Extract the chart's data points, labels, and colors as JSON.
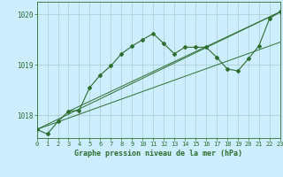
{
  "title": "Graphe pression niveau de la mer (hPa)",
  "background_color": "#cceeff",
  "grid_color": "#aacccc",
  "line_color": "#2d6e2d",
  "xlim": [
    0,
    23
  ],
  "ylim": [
    1017.55,
    1020.25
  ],
  "yticks": [
    1018,
    1019,
    1020
  ],
  "xticks": [
    0,
    1,
    2,
    3,
    4,
    5,
    6,
    7,
    8,
    9,
    10,
    11,
    12,
    13,
    14,
    15,
    16,
    17,
    18,
    19,
    20,
    21,
    22,
    23
  ],
  "main_series": [
    [
      0,
      1017.72
    ],
    [
      1,
      1017.63
    ],
    [
      2,
      1017.88
    ],
    [
      3,
      1018.08
    ],
    [
      4,
      1018.1
    ],
    [
      5,
      1018.55
    ],
    [
      6,
      1018.8
    ],
    [
      7,
      1018.98
    ],
    [
      8,
      1019.22
    ],
    [
      9,
      1019.37
    ],
    [
      10,
      1019.5
    ],
    [
      11,
      1019.62
    ],
    [
      12,
      1019.42
    ],
    [
      13,
      1019.22
    ],
    [
      14,
      1019.35
    ],
    [
      15,
      1019.35
    ],
    [
      16,
      1019.35
    ],
    [
      17,
      1019.15
    ],
    [
      18,
      1018.92
    ],
    [
      19,
      1018.88
    ],
    [
      20,
      1019.12
    ],
    [
      21,
      1019.38
    ],
    [
      22,
      1019.92
    ],
    [
      23,
      1020.05
    ]
  ],
  "linear1": [
    [
      0,
      1017.72
    ],
    [
      23,
      1020.05
    ]
  ],
  "linear2": [
    [
      0,
      1017.72
    ],
    [
      23,
      1019.45
    ]
  ],
  "linear3": [
    [
      3,
      1018.08
    ],
    [
      23,
      1020.05
    ]
  ]
}
